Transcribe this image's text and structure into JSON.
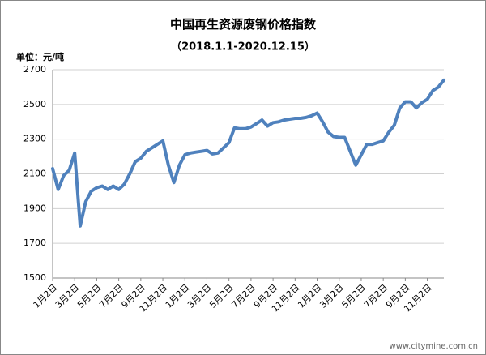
{
  "chart_data": {
    "type": "line",
    "title": "中国再生资源废钢价格指数",
    "subtitle": "（2018.1.1-2020.12.15）",
    "y_label": "单位：元/吨",
    "watermark": "www.citymine.com.cn",
    "color": "#4f81bd",
    "grid": true,
    "ylim": [
      1500,
      2700
    ],
    "yticks": [
      1500,
      1700,
      1900,
      2100,
      2300,
      2500,
      2700
    ],
    "categories": [
      "1月2日",
      null,
      null,
      null,
      "3月2日",
      null,
      null,
      null,
      "5月2日",
      null,
      null,
      null,
      "7月2日",
      null,
      null,
      null,
      "9月2日",
      null,
      null,
      null,
      "11月2日",
      null,
      null,
      null,
      "1月2日",
      null,
      null,
      null,
      "3月2日",
      null,
      null,
      null,
      "5月2日",
      null,
      null,
      null,
      "7月2日",
      null,
      null,
      null,
      "9月2日",
      null,
      null,
      null,
      "11月2日",
      null,
      null,
      null,
      "1月2日",
      null,
      null,
      null,
      "3月2日",
      null,
      null,
      null,
      "5月2日",
      null,
      null,
      null,
      "7月2日",
      null,
      null,
      null,
      "9月2日",
      null,
      null,
      null,
      "11月2日",
      null,
      null,
      null
    ],
    "values": [
      2130,
      2010,
      2090,
      2120,
      2220,
      1800,
      1940,
      2000,
      2020,
      2030,
      2010,
      2030,
      2010,
      2040,
      2100,
      2170,
      2190,
      2230,
      2250,
      2270,
      2290,
      2150,
      2050,
      2150,
      2210,
      2220,
      2225,
      2230,
      2235,
      2215,
      2220,
      2250,
      2280,
      2365,
      2360,
      2360,
      2370,
      2390,
      2410,
      2375,
      2395,
      2400,
      2410,
      2415,
      2420,
      2420,
      2425,
      2435,
      2450,
      2400,
      2340,
      2315,
      2310,
      2310,
      2230,
      2150,
      2210,
      2270,
      2270,
      2280,
      2290,
      2340,
      2380,
      2480,
      2515,
      2515,
      2480,
      2510,
      2530,
      2580,
      2600,
      2640
    ]
  }
}
